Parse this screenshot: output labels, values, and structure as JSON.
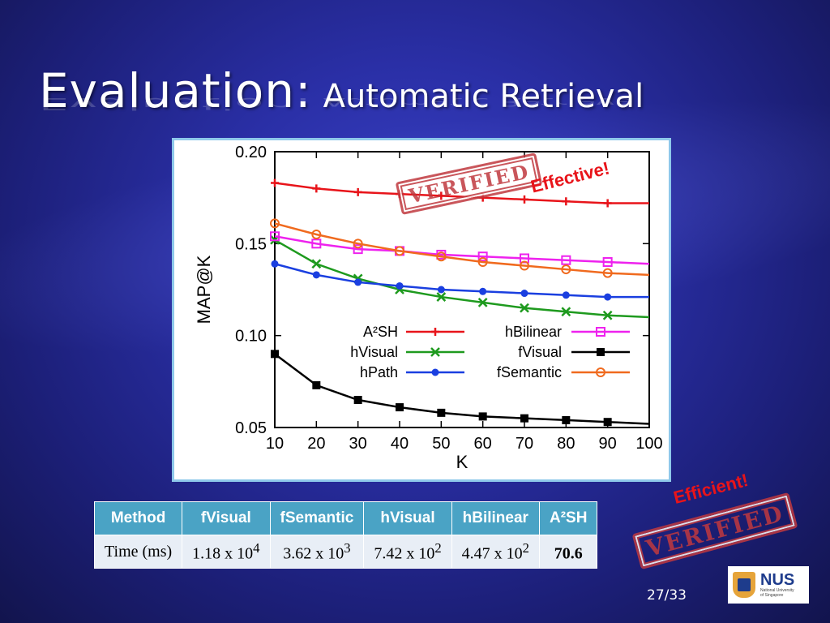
{
  "slide": {
    "title_main": "Evaluation:",
    "title_sub": "Automatic Retrieval",
    "page_number": "27/33"
  },
  "annotations": {
    "stamp_text": "VERIFIED",
    "effective": "Effective!",
    "efficient": "Efficient!"
  },
  "chart_data": {
    "type": "line",
    "xlabel": "K",
    "ylabel": "MAP@K",
    "xlim": [
      10,
      100
    ],
    "ylim": [
      0.05,
      0.2
    ],
    "xticks": [
      10,
      20,
      30,
      40,
      50,
      60,
      70,
      80,
      90,
      100
    ],
    "yticks": [
      "0.05",
      "0.10",
      "0.15",
      "0.20"
    ],
    "legend_placement": "center-right",
    "x": [
      10,
      20,
      30,
      40,
      50,
      60,
      70,
      80,
      90,
      100
    ],
    "series": [
      {
        "name": "A²SH",
        "color": "#e8141a",
        "marker": "plus",
        "values": [
          0.183,
          0.18,
          0.178,
          0.177,
          0.176,
          0.175,
          0.174,
          0.173,
          0.172,
          0.172
        ]
      },
      {
        "name": "hVisual",
        "color": "#1e9a1e",
        "marker": "x",
        "values": [
          0.152,
          0.139,
          0.131,
          0.125,
          0.121,
          0.118,
          0.115,
          0.113,
          0.111,
          0.11
        ]
      },
      {
        "name": "hPath",
        "color": "#1a3fe0",
        "marker": "dot",
        "values": [
          0.139,
          0.133,
          0.129,
          0.127,
          0.125,
          0.124,
          0.123,
          0.122,
          0.121,
          0.121
        ]
      },
      {
        "name": "hBilinear",
        "color": "#ee22ee",
        "marker": "square-open",
        "values": [
          0.154,
          0.15,
          0.147,
          0.146,
          0.144,
          0.143,
          0.142,
          0.141,
          0.14,
          0.139
        ]
      },
      {
        "name": "fVisual",
        "color": "#000000",
        "marker": "square",
        "values": [
          0.09,
          0.073,
          0.065,
          0.061,
          0.058,
          0.056,
          0.055,
          0.054,
          0.053,
          0.052
        ]
      },
      {
        "name": "fSemantic",
        "color": "#f06a1e",
        "marker": "circle-open",
        "values": [
          0.161,
          0.155,
          0.15,
          0.146,
          0.143,
          0.14,
          0.138,
          0.136,
          0.134,
          0.133
        ]
      }
    ]
  },
  "table": {
    "header_method": "Method",
    "columns": [
      "fVisual",
      "fSemantic",
      "hVisual",
      "hBilinear",
      "A²SH"
    ],
    "row_label": "Time (ms)",
    "cells": [
      {
        "base": "1.18 x 10",
        "exp": "4"
      },
      {
        "base": "3.62 x 10",
        "exp": "3"
      },
      {
        "base": "7.42 x 10",
        "exp": "2"
      },
      {
        "base": "4.47 x 10",
        "exp": "2"
      },
      {
        "base": "70.6",
        "exp": ""
      }
    ]
  }
}
